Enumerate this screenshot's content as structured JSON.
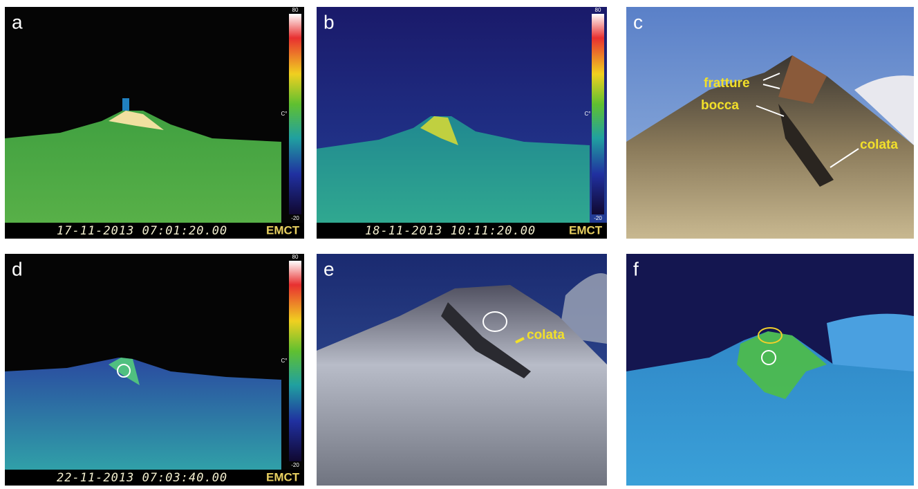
{
  "panels": [
    {
      "letter": "a",
      "colorbar": {
        "max": "80",
        "unit": "C°",
        "min": "-20"
      },
      "timestamp": "17-11-2013 07:01:20.00",
      "station": "EMCT"
    },
    {
      "letter": "b",
      "colorbar": {
        "max": "80",
        "unit": "C°",
        "min": "-20"
      },
      "timestamp": "18-11-2013 10:11:20.00",
      "station": "EMCT"
    },
    {
      "letter": "c",
      "annotations": [
        "fratture",
        "bocca",
        "colata"
      ]
    },
    {
      "letter": "d",
      "colorbar": {
        "max": "80",
        "unit": "C°",
        "min": "-20"
      },
      "timestamp": "22-11-2013 07:03:40.00",
      "station": "EMCT"
    },
    {
      "letter": "e",
      "annotations": [
        "colata"
      ]
    },
    {
      "letter": "f"
    }
  ]
}
